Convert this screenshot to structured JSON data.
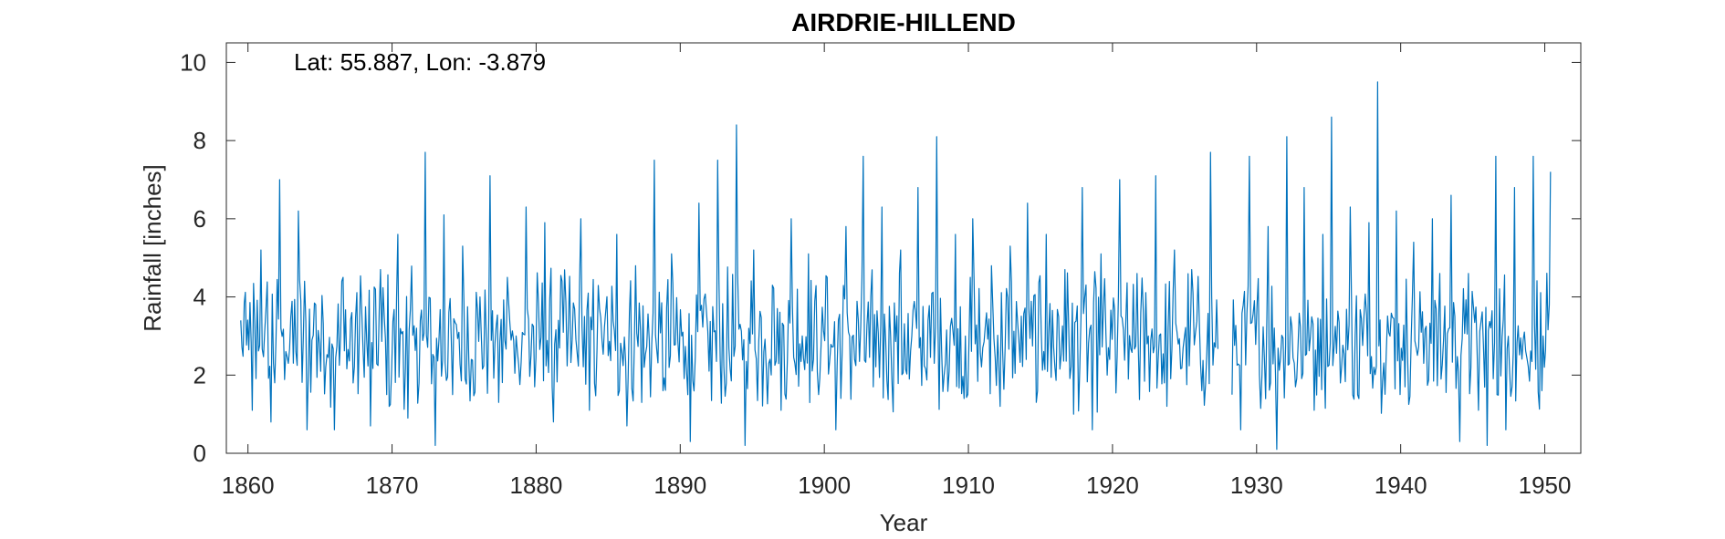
{
  "chart_data": {
    "type": "line",
    "title": "AIRDRIE-HILLEND",
    "annotation": "Lat: 55.887, Lon: -3.879",
    "xlabel": "Year",
    "ylabel": "Rainfall [inches]",
    "xlim": [
      1858.5,
      1952.5
    ],
    "ylim": [
      0,
      10.5
    ],
    "xticks": [
      1860,
      1870,
      1880,
      1890,
      1900,
      1910,
      1920,
      1930,
      1940,
      1950
    ],
    "yticks": [
      0,
      2,
      4,
      6,
      8,
      10
    ],
    "grid": false,
    "line_color": "#0072BD",
    "frequency": "monthly",
    "gaps": [
      [
        1927.4,
        1928.3
      ]
    ],
    "series": [
      {
        "x": [
          1859.5,
          1860.3,
          1860.9,
          1861.6,
          1862.2,
          1862.8,
          1863.5,
          1864.1,
          1864.7,
          1865.4,
          1866.0,
          1866.6,
          1867.3,
          1867.9,
          1868.5,
          1869.2,
          1869.8,
          1870.4,
          1871.1,
          1871.7,
          1872.3,
          1873.0,
          1873.6,
          1874.2,
          1874.9,
          1875.5,
          1876.1,
          1876.8,
          1877.4,
          1878.0,
          1878.7,
          1879.3,
          1879.9,
          1880.6,
          1881.2,
          1881.8,
          1882.5,
          1883.1,
          1883.7,
          1884.4,
          1885.0,
          1885.6,
          1886.3,
          1886.9,
          1887.5,
          1888.2,
          1888.8,
          1889.4,
          1890.1,
          1890.7,
          1891.3,
          1892.0,
          1892.6,
          1893.2,
          1893.9,
          1894.5,
          1895.1,
          1895.8,
          1896.4,
          1897.0,
          1897.7,
          1898.3,
          1898.9,
          1899.6,
          1900.2,
          1900.8,
          1901.5,
          1902.1,
          1902.7,
          1903.4,
          1904.0,
          1904.6,
          1905.3,
          1905.9,
          1906.5,
          1907.2,
          1907.8,
          1908.4,
          1909.1,
          1909.7,
          1910.3,
          1911.0,
          1911.6,
          1912.2,
          1912.9,
          1913.5,
          1914.1,
          1914.8,
          1915.4,
          1916.0,
          1916.7,
          1917.3,
          1917.9,
          1918.6,
          1919.2,
          1919.8,
          1920.5,
          1921.1,
          1921.7,
          1922.4,
          1923.0,
          1923.6,
          1924.3,
          1924.9,
          1925.5,
          1926.2,
          1926.8,
          1927.4,
          1928.3,
          1928.9,
          1929.5,
          1930.2,
          1930.8,
          1931.4,
          1932.1,
          1932.7,
          1933.3,
          1934.0,
          1934.6,
          1935.2,
          1935.9,
          1936.5,
          1937.1,
          1937.8,
          1938.4,
          1939.0,
          1939.7,
          1940.3,
          1940.9,
          1941.6,
          1942.2,
          1942.8,
          1943.5,
          1944.1,
          1944.7,
          1945.4,
          1946.0,
          1946.6,
          1947.3,
          1947.9,
          1948.5,
          1949.2,
          1949.8,
          1950.4
        ],
        "y": [
          3.4,
          1.1,
          5.2,
          0.8,
          7.0,
          2.3,
          6.2,
          0.6,
          3.8,
          2.2,
          0.6,
          4.5,
          1.8,
          3.6,
          0.7,
          4.7,
          1.2,
          5.6,
          0.9,
          3.2,
          7.7,
          0.2,
          6.1,
          1.5,
          5.3,
          2.4,
          4.0,
          7.1,
          1.3,
          4.5,
          2.6,
          6.3,
          1.7,
          5.9,
          0.8,
          4.4,
          2.9,
          6.0,
          1.1,
          3.7,
          2.5,
          5.6,
          0.7,
          4.8,
          2.2,
          7.5,
          1.6,
          5.1,
          3.0,
          0.3,
          6.4,
          2.1,
          7.5,
          1.8,
          8.4,
          0.2,
          5.2,
          2.6,
          4.3,
          1.1,
          6.0,
          2.8,
          5.1,
          1.5,
          4.5,
          0.6,
          5.8,
          2.4,
          7.6,
          1.7,
          6.3,
          3.0,
          5.2,
          1.9,
          6.8,
          3.4,
          8.1,
          2.3,
          5.6,
          1.4,
          6.0,
          2.7,
          4.8,
          1.2,
          5.3,
          2.9,
          6.4,
          1.6,
          5.6,
          2.2,
          4.7,
          1.0,
          6.8,
          0.6,
          5.1,
          2.4,
          7.0,
          1.9,
          4.6,
          2.8,
          7.1,
          1.8,
          5.2,
          2.7,
          4.7,
          1.6,
          7.7,
          0.9,
          1.5,
          0.6,
          7.6,
          2.0,
          5.8,
          0.1,
          8.1,
          1.7,
          6.8,
          1.1,
          5.6,
          8.6,
          2.2,
          6.3,
          1.4,
          5.9,
          9.5,
          2.6,
          6.2,
          1.7,
          5.4,
          2.3,
          6.0,
          1.9,
          6.6,
          0.3,
          4.6,
          1.1,
          0.2,
          7.6,
          0.6,
          6.8,
          2.9,
          7.6,
          1.6,
          7.2
        ]
      }
    ]
  }
}
